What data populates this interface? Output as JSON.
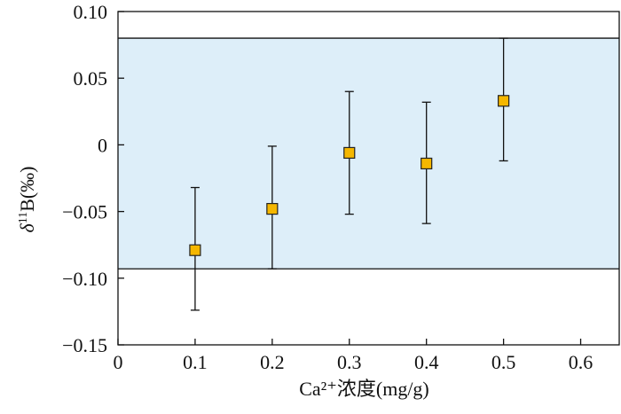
{
  "chart_data": {
    "type": "scatter",
    "xlabel": "Ca²⁺浓度(mg/g)",
    "ylabel_parts": {
      "symbol": "δ",
      "sup": "11",
      "rest": "B(‰)"
    },
    "xlim": [
      0,
      0.65
    ],
    "ylim": [
      -0.15,
      0.1
    ],
    "x_ticks": [
      0,
      0.1,
      0.2,
      0.3,
      0.4,
      0.5,
      0.6
    ],
    "x_tick_labels": [
      "0",
      "0.1",
      "0.2",
      "0.3",
      "0.4",
      "0.5",
      "0.6"
    ],
    "y_ticks": [
      0.1,
      0.05,
      0,
      -0.05,
      -0.1,
      -0.15
    ],
    "y_tick_labels": [
      "0.10",
      "0.05",
      "0",
      "−0.05",
      "−0.10",
      "−0.15"
    ],
    "band": {
      "lower": -0.093,
      "upper": 0.08,
      "color": "#ddeef9"
    },
    "marker_color": "#f5b700",
    "points": [
      {
        "x": 0.1,
        "y": -0.079,
        "err_low": -0.124,
        "err_high": -0.032
      },
      {
        "x": 0.2,
        "y": -0.048,
        "err_low": -0.093,
        "err_high": -0.001
      },
      {
        "x": 0.3,
        "y": -0.006,
        "err_low": -0.052,
        "err_high": 0.04
      },
      {
        "x": 0.4,
        "y": -0.014,
        "err_low": -0.059,
        "err_high": 0.032
      },
      {
        "x": 0.5,
        "y": 0.033,
        "err_low": -0.012,
        "err_high": 0.08
      }
    ],
    "grid": false,
    "legend": "none"
  }
}
